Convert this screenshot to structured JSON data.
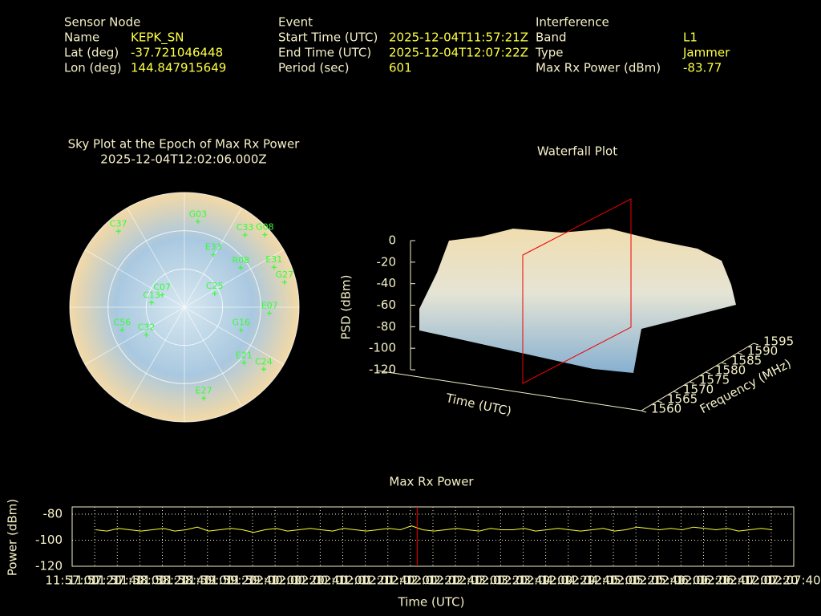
{
  "header": {
    "sections": [
      {
        "title": "Sensor Node",
        "fields": [
          {
            "label": "Name",
            "value": "KEPK_SN"
          },
          {
            "label": "Lat (deg)",
            "value": "-37.721046448"
          },
          {
            "label": "Lon (deg)",
            "value": "144.847915649"
          }
        ]
      },
      {
        "title": "Event",
        "fields": [
          {
            "label": "Start Time (UTC)",
            "value": "2025-12-04T11:57:21Z"
          },
          {
            "label": "End Time (UTC)",
            "value": "2025-12-04T12:07:22Z"
          },
          {
            "label": "Period (sec)",
            "value": "601"
          }
        ]
      },
      {
        "title": "Interference",
        "fields": [
          {
            "label": "Band",
            "value": "L1"
          },
          {
            "label": "Type",
            "value": "Jammer"
          },
          {
            "label": "Max Rx Power (dBm)",
            "value": "-83.77"
          }
        ]
      }
    ]
  },
  "chart_data": [
    {
      "type": "polar-scatter",
      "title": "Sky Plot at the Epoch of Max Rx Power",
      "subtitle": "2025-12-04T12:02:06.000Z",
      "color": "#33ff33",
      "rlim": [
        90,
        0
      ],
      "rticks": [
        0,
        30,
        60
      ],
      "satellites": [
        {
          "name": "G03",
          "azimuth": 9,
          "elevation": 22
        },
        {
          "name": "C33",
          "azimuth": 40,
          "elevation": 16
        },
        {
          "name": "G08",
          "azimuth": 48,
          "elevation": 5
        },
        {
          "name": "E33",
          "azimuth": 29,
          "elevation": 43
        },
        {
          "name": "R08",
          "azimuth": 55,
          "elevation": 36
        },
        {
          "name": "E31",
          "azimuth": 66,
          "elevation": 13
        },
        {
          "name": "G27",
          "azimuth": 76,
          "elevation": 9
        },
        {
          "name": "E07",
          "azimuth": 94,
          "elevation": 23
        },
        {
          "name": "G16",
          "azimuth": 112,
          "elevation": 42
        },
        {
          "name": "E21",
          "azimuth": 133,
          "elevation": 26
        },
        {
          "name": "C24",
          "azimuth": 128,
          "elevation": 11
        },
        {
          "name": "E27",
          "azimuth": 168,
          "elevation": 17
        },
        {
          "name": "C56",
          "azimuth": 250,
          "elevation": 38
        },
        {
          "name": "C32",
          "azimuth": 234,
          "elevation": 53
        },
        {
          "name": "C13",
          "azimuth": 278,
          "elevation": 64
        },
        {
          "name": "C07",
          "azimuth": 299,
          "elevation": 70
        },
        {
          "name": "C37",
          "azimuth": 319,
          "elevation": 11
        },
        {
          "name": "C25",
          "azimuth": 66,
          "elevation": 64
        }
      ]
    },
    {
      "type": "waterfall-3d",
      "title": "Waterfall Plot",
      "zlabel": "PSD (dBm)",
      "xlabel": "Time (UTC)",
      "ylabel": "Frequency (MHz)",
      "zlim": [
        -120,
        0
      ],
      "zticks": [
        0,
        -20,
        -40,
        -60,
        -80,
        -100,
        -120
      ],
      "ylim": [
        1560,
        1595
      ],
      "yticks": [
        1560,
        1565,
        1570,
        1575,
        1580,
        1585,
        1590,
        1595
      ]
    },
    {
      "type": "line",
      "title": "Max Rx Power",
      "xlabel": "Time (UTC)",
      "ylabel": "Power (dBm)",
      "grid": true,
      "xlim": [
        "11:57:00",
        "12:07:40"
      ],
      "xticks": [
        "11:57:00",
        "11:57:20",
        "11:57:40",
        "11:58:00",
        "11:58:20",
        "11:58:40",
        "11:59:00",
        "11:59:20",
        "11:59:40",
        "12:00:00",
        "12:00:20",
        "12:00:40",
        "12:01:00",
        "12:01:20",
        "12:01:40",
        "12:02:00",
        "12:02:20",
        "12:02:40",
        "12:03:00",
        "12:03:20",
        "12:03:40",
        "12:04:00",
        "12:04:20",
        "12:04:40",
        "12:05:00",
        "12:05:20",
        "12:05:40",
        "12:06:00",
        "12:06:20",
        "12:06:40",
        "12:07:00",
        "12:07:20",
        "12:07:40"
      ],
      "ylim": [
        -120,
        -74.5
      ],
      "yticks": [
        -80,
        -100,
        -120
      ],
      "annotation": {
        "x": "12:02:06",
        "color": "#ff0000"
      },
      "series": [
        {
          "color": "#ffff33",
          "x": [
            "11:57:21",
            "11:57:31",
            "11:57:41",
            "11:57:51",
            "11:58:01",
            "11:58:11",
            "11:58:21",
            "11:58:31",
            "11:58:41",
            "11:58:51",
            "11:59:01",
            "11:59:11",
            "11:59:21",
            "11:59:31",
            "11:59:41",
            "11:59:51",
            "12:00:01",
            "12:00:11",
            "12:00:21",
            "12:00:31",
            "12:00:41",
            "12:00:51",
            "12:01:01",
            "12:01:11",
            "12:01:21",
            "12:01:31",
            "12:01:41",
            "12:01:51",
            "12:02:01",
            "12:02:11",
            "12:02:21",
            "12:02:31",
            "12:02:41",
            "12:02:51",
            "12:03:01",
            "12:03:11",
            "12:03:21",
            "12:03:31",
            "12:03:41",
            "12:03:51",
            "12:04:01",
            "12:04:11",
            "12:04:21",
            "12:04:31",
            "12:04:41",
            "12:04:51",
            "12:05:01",
            "12:05:11",
            "12:05:21",
            "12:05:31",
            "12:05:41",
            "12:05:51",
            "12:06:01",
            "12:06:11",
            "12:06:21",
            "12:06:31",
            "12:06:41",
            "12:06:51",
            "12:07:01",
            "12:07:11",
            "12:07:21"
          ],
          "values": [
            -92,
            -93,
            -91,
            -92,
            -93,
            -92,
            -91,
            -93,
            -92,
            -90,
            -93,
            -92,
            -91,
            -92,
            -94,
            -92,
            -91,
            -93,
            -92,
            -91,
            -92,
            -93,
            -91,
            -92,
            -93,
            -92,
            -91,
            -92,
            -89,
            -92,
            -93,
            -92,
            -91,
            -92,
            -93,
            -91,
            -92,
            -92,
            -91,
            -93,
            -92,
            -91,
            -92,
            -93,
            -92,
            -91,
            -93,
            -92,
            -90,
            -91,
            -92,
            -91,
            -92,
            -90,
            -91,
            -92,
            -91,
            -93,
            -92,
            -91,
            -92
          ]
        }
      ]
    }
  ]
}
